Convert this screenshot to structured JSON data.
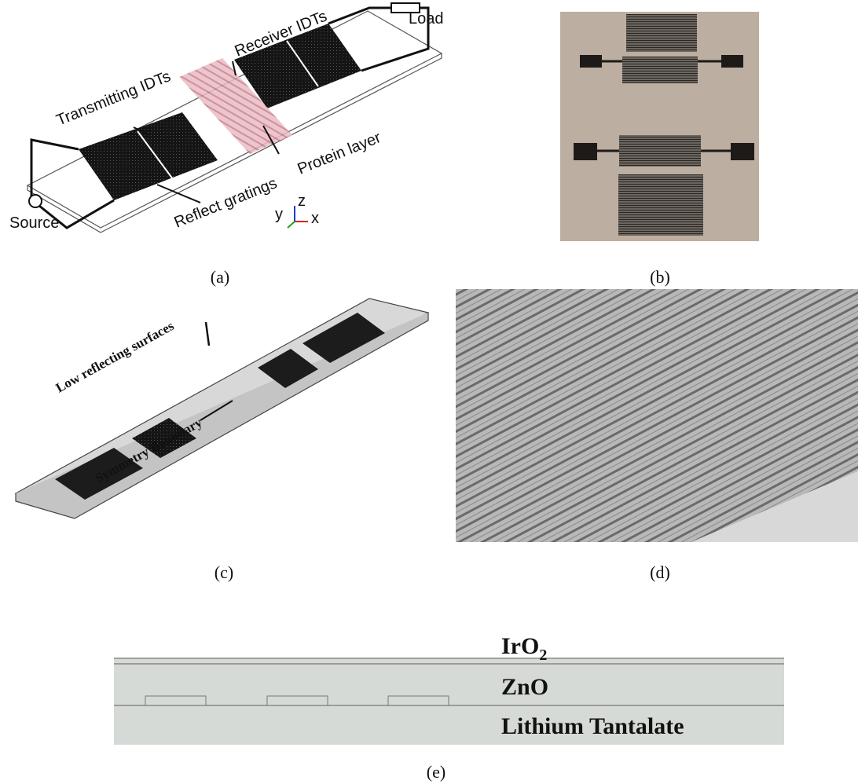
{
  "panels": {
    "a": {
      "label": "(a)",
      "texts": {
        "load": "Load",
        "receiver": "Receiver IDTs",
        "transmitting": "Transmitting IDTs",
        "protein": "Protein layer",
        "reflect": "Reflect gratings",
        "source": "Source",
        "axis_y": "y",
        "axis_z": "z",
        "axis_x": "x"
      }
    },
    "b": {
      "label": "(b)"
    },
    "c": {
      "label": "(c)",
      "texts": {
        "low": "Low reflecting surfaces",
        "symmetry": "Symmetry Boundary"
      }
    },
    "d": {
      "label": "(d)"
    },
    "e": {
      "label": "(e)",
      "layers": [
        {
          "text": "IrO",
          "subscript": "2"
        },
        {
          "text": "ZnO"
        },
        {
          "text": "Lithium Tantalate"
        }
      ]
    }
  }
}
